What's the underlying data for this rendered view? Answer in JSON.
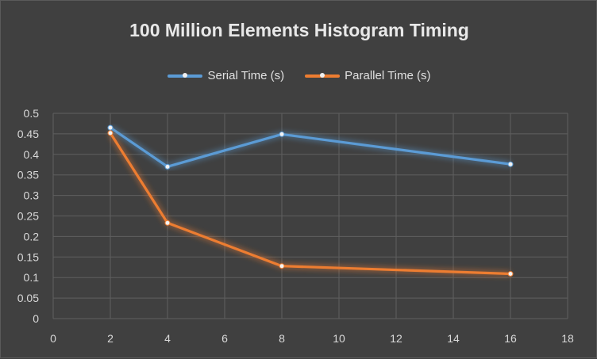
{
  "chart_data": {
    "type": "line",
    "title": "100 Million Elements Histogram Timing",
    "xlabel": "",
    "ylabel": "",
    "xlim": [
      0,
      18
    ],
    "ylim": [
      0,
      0.5
    ],
    "x_ticks": [
      0,
      2,
      4,
      6,
      8,
      10,
      12,
      14,
      16,
      18
    ],
    "y_ticks": [
      0,
      0.05,
      0.1,
      0.15,
      0.2,
      0.25,
      0.3,
      0.35,
      0.4,
      0.45,
      0.5
    ],
    "grid": true,
    "legend_position": "top",
    "series": [
      {
        "name": "Serial Time (s)",
        "color": "#5b9bd5",
        "x": [
          2,
          4,
          8,
          16
        ],
        "y": [
          0.465,
          0.37,
          0.449,
          0.376
        ]
      },
      {
        "name": "Parallel Time (s)",
        "color": "#ed7d31",
        "x": [
          2,
          4,
          8,
          16
        ],
        "y": [
          0.452,
          0.233,
          0.128,
          0.109
        ]
      }
    ]
  }
}
